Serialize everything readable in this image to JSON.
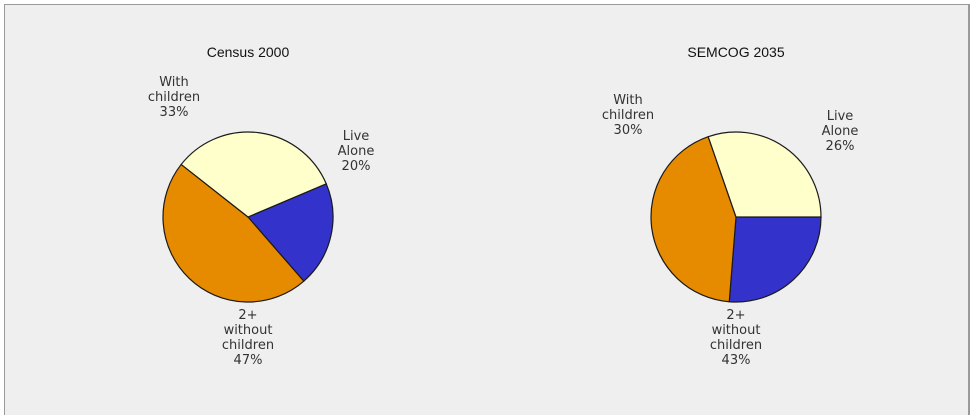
{
  "chart_data": [
    {
      "type": "pie",
      "title": "Census 2000",
      "slices": [
        {
          "label": [
            "Live",
            "Alone",
            "20%"
          ],
          "value": 20,
          "color": "#3333cc"
        },
        {
          "label": [
            "2+",
            "without",
            "children",
            "47%"
          ],
          "value": 47,
          "color": "#e68a00"
        },
        {
          "label": [
            "With",
            "children",
            "33%"
          ],
          "value": 33,
          "color": "#ffffcc"
        }
      ]
    },
    {
      "type": "pie",
      "title": "SEMCOG 2035",
      "slices": [
        {
          "label": [
            "Live",
            "Alone",
            "26%"
          ],
          "value": 26,
          "color": "#3333cc"
        },
        {
          "label": [
            "2+",
            "without",
            "children",
            "43%"
          ],
          "value": 43,
          "color": "#e68a00"
        },
        {
          "label": [
            "With",
            "children",
            "30%"
          ],
          "value": 30,
          "color": "#ffffcc"
        }
      ]
    }
  ]
}
